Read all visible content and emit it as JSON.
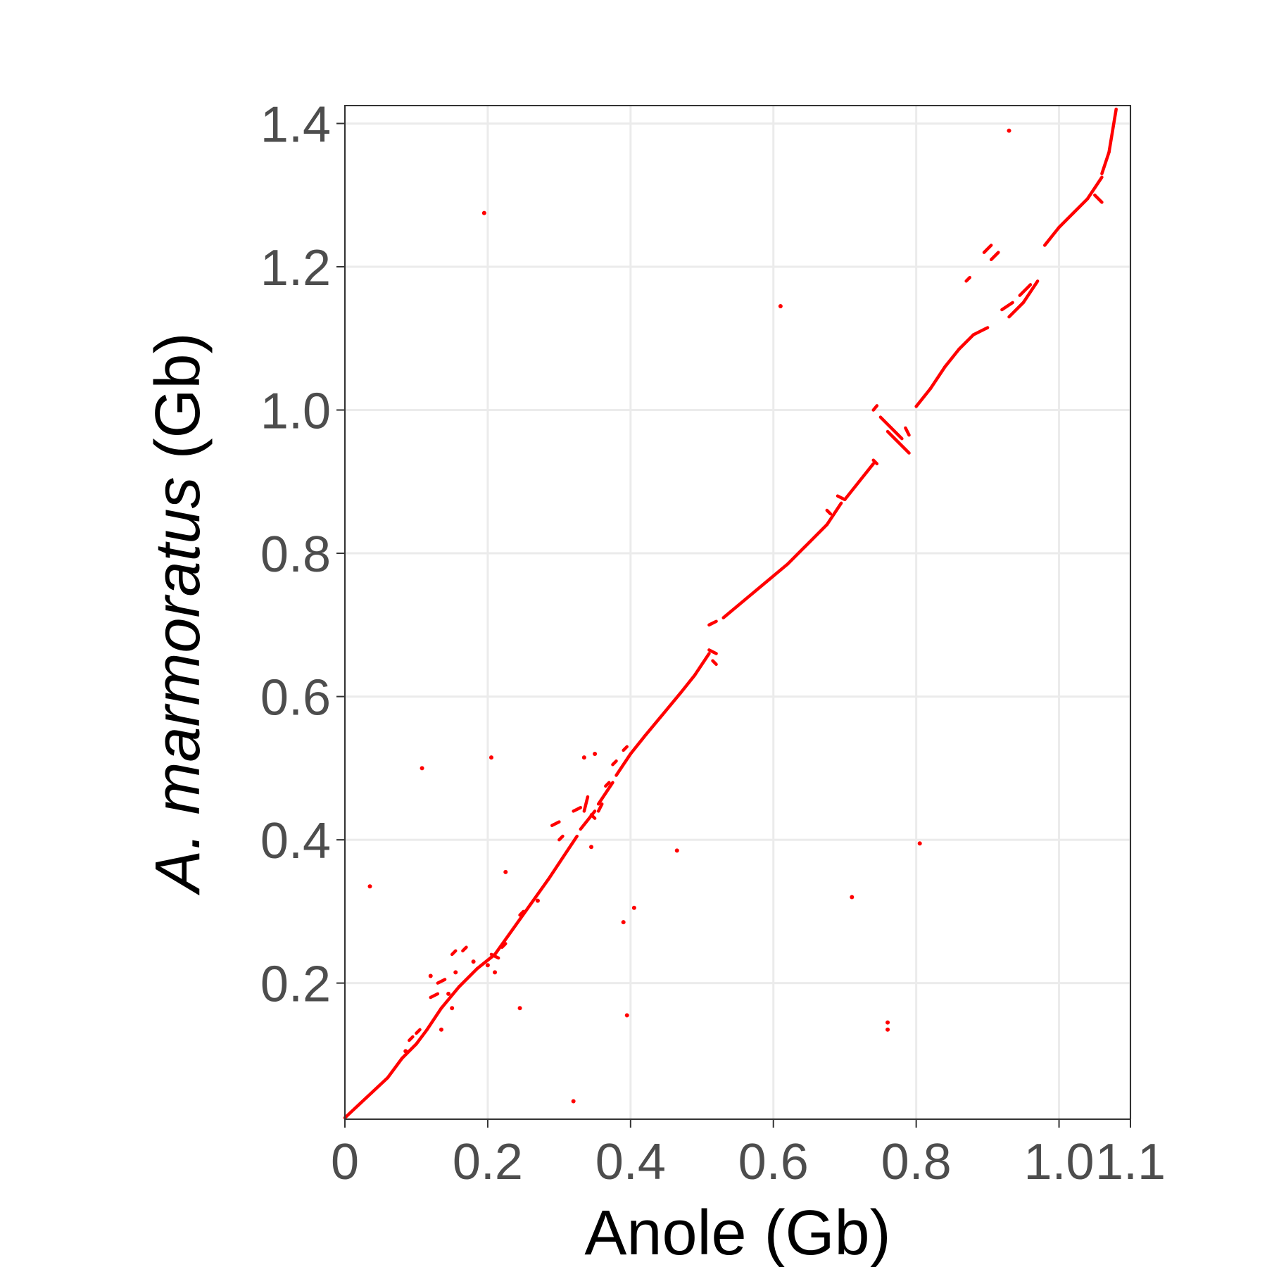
{
  "chart_data": {
    "type": "scatter",
    "title": "",
    "xlabel": "Anole (Gb)",
    "ylabel_italic": "A. marmoratus",
    "ylabel_rest": " (Gb)",
    "xlim": [
      0,
      1.1
    ],
    "ylim": [
      0.01,
      1.425
    ],
    "x_ticks": [
      0,
      0.2,
      0.4,
      0.6,
      0.8,
      1.0,
      1.1
    ],
    "x_tick_labels": [
      "0",
      "0.2",
      "0.4",
      "0.6",
      "0.8",
      "1.0",
      "1.1"
    ],
    "y_ticks": [
      0.2,
      0.4,
      0.6,
      0.8,
      1.0,
      1.2,
      1.4
    ],
    "y_tick_labels": [
      "0.2",
      "0.4",
      "0.6",
      "0.8",
      "1.0",
      "1.2",
      "1.4"
    ],
    "grid": true,
    "color": "#ff0000",
    "segments": [
      [
        0.0,
        0.012,
        0.03,
        0.04
      ],
      [
        0.03,
        0.04,
        0.06,
        0.068
      ],
      [
        0.06,
        0.068,
        0.08,
        0.095
      ],
      [
        0.08,
        0.095,
        0.1,
        0.115
      ],
      [
        0.1,
        0.115,
        0.115,
        0.135
      ],
      [
        0.115,
        0.135,
        0.135,
        0.165
      ],
      [
        0.135,
        0.165,
        0.16,
        0.195
      ],
      [
        0.16,
        0.195,
        0.185,
        0.22
      ],
      [
        0.185,
        0.22,
        0.21,
        0.24
      ],
      [
        0.21,
        0.24,
        0.235,
        0.275
      ],
      [
        0.235,
        0.275,
        0.26,
        0.31
      ],
      [
        0.26,
        0.31,
        0.285,
        0.345
      ],
      [
        0.285,
        0.345,
        0.305,
        0.375
      ],
      [
        0.305,
        0.375,
        0.325,
        0.405
      ],
      [
        0.33,
        0.415,
        0.35,
        0.44
      ],
      [
        0.355,
        0.45,
        0.375,
        0.48
      ],
      [
        0.38,
        0.49,
        0.4,
        0.52
      ],
      [
        0.4,
        0.52,
        0.42,
        0.545
      ],
      [
        0.42,
        0.545,
        0.445,
        0.575
      ],
      [
        0.445,
        0.575,
        0.47,
        0.605
      ],
      [
        0.47,
        0.605,
        0.49,
        0.63
      ],
      [
        0.49,
        0.63,
        0.51,
        0.66
      ],
      [
        0.51,
        0.7,
        0.52,
        0.705
      ],
      [
        0.53,
        0.71,
        0.56,
        0.735
      ],
      [
        0.56,
        0.735,
        0.59,
        0.76
      ],
      [
        0.59,
        0.76,
        0.62,
        0.785
      ],
      [
        0.62,
        0.785,
        0.65,
        0.815
      ],
      [
        0.65,
        0.815,
        0.675,
        0.84
      ],
      [
        0.675,
        0.84,
        0.695,
        0.87
      ],
      [
        0.7,
        0.875,
        0.72,
        0.9
      ],
      [
        0.72,
        0.9,
        0.74,
        0.925
      ],
      [
        0.8,
        1.005,
        0.82,
        1.03
      ],
      [
        0.82,
        1.03,
        0.84,
        1.06
      ],
      [
        0.84,
        1.06,
        0.86,
        1.085
      ],
      [
        0.86,
        1.085,
        0.88,
        1.105
      ],
      [
        0.88,
        1.105,
        0.9,
        1.115
      ],
      [
        0.93,
        1.13,
        0.95,
        1.15
      ],
      [
        0.95,
        1.15,
        0.97,
        1.18
      ],
      [
        0.98,
        1.23,
        1.0,
        1.255
      ],
      [
        1.0,
        1.255,
        1.02,
        1.275
      ],
      [
        1.02,
        1.275,
        1.04,
        1.295
      ],
      [
        1.04,
        1.295,
        1.06,
        1.325
      ],
      [
        1.06,
        1.33,
        1.07,
        1.36
      ],
      [
        1.07,
        1.36,
        1.08,
        1.42
      ],
      [
        0.74,
        1.0,
        0.745,
        1.006
      ],
      [
        0.75,
        0.99,
        0.765,
        0.975
      ],
      [
        0.765,
        0.975,
        0.78,
        0.96
      ],
      [
        0.76,
        0.97,
        0.775,
        0.955
      ],
      [
        0.775,
        0.955,
        0.79,
        0.94
      ],
      [
        0.785,
        0.975,
        0.79,
        0.965
      ],
      [
        0.87,
        1.18,
        0.875,
        1.185
      ],
      [
        0.895,
        1.22,
        0.905,
        1.23
      ],
      [
        0.905,
        1.21,
        0.915,
        1.22
      ],
      [
        0.92,
        1.14,
        0.935,
        1.15
      ],
      [
        0.945,
        1.16,
        0.96,
        1.175
      ],
      [
        1.05,
        1.3,
        1.06,
        1.29
      ],
      [
        0.51,
        0.665,
        0.52,
        0.66
      ],
      [
        0.515,
        0.65,
        0.52,
        0.645
      ],
      [
        0.74,
        0.93,
        0.745,
        0.925
      ],
      [
        0.69,
        0.88,
        0.7,
        0.875
      ],
      [
        0.675,
        0.86,
        0.68,
        0.855
      ],
      [
        0.365,
        0.475,
        0.37,
        0.48
      ],
      [
        0.355,
        0.44,
        0.36,
        0.45
      ],
      [
        0.345,
        0.435,
        0.35,
        0.43
      ],
      [
        0.375,
        0.505,
        0.38,
        0.51
      ],
      [
        0.39,
        0.525,
        0.395,
        0.53
      ],
      [
        0.29,
        0.42,
        0.3,
        0.425
      ],
      [
        0.3,
        0.4,
        0.305,
        0.405
      ],
      [
        0.32,
        0.44,
        0.33,
        0.445
      ],
      [
        0.335,
        0.44,
        0.34,
        0.46
      ],
      [
        0.22,
        0.25,
        0.225,
        0.255
      ],
      [
        0.245,
        0.295,
        0.25,
        0.3
      ],
      [
        0.205,
        0.24,
        0.215,
        0.235
      ],
      [
        0.15,
        0.24,
        0.155,
        0.245
      ],
      [
        0.17,
        0.25,
        0.165,
        0.245
      ],
      [
        0.1,
        0.13,
        0.105,
        0.135
      ],
      [
        0.09,
        0.12,
        0.095,
        0.125
      ],
      [
        0.12,
        0.18,
        0.13,
        0.185
      ],
      [
        0.13,
        0.2,
        0.14,
        0.205
      ]
    ],
    "points": [
      [
        0.195,
        1.275
      ],
      [
        0.035,
        0.335
      ],
      [
        0.108,
        0.5
      ],
      [
        0.205,
        0.515
      ],
      [
        0.225,
        0.355
      ],
      [
        0.245,
        0.165
      ],
      [
        0.32,
        0.035
      ],
      [
        0.335,
        0.515
      ],
      [
        0.345,
        0.39
      ],
      [
        0.39,
        0.285
      ],
      [
        0.395,
        0.155
      ],
      [
        0.405,
        0.305
      ],
      [
        0.465,
        0.385
      ],
      [
        0.61,
        1.145
      ],
      [
        0.71,
        0.32
      ],
      [
        0.76,
        0.145
      ],
      [
        0.76,
        0.135
      ],
      [
        0.805,
        0.395
      ],
      [
        0.93,
        1.39
      ],
      [
        0.135,
        0.135
      ],
      [
        0.15,
        0.165
      ],
      [
        0.12,
        0.21
      ],
      [
        0.085,
        0.105
      ],
      [
        0.27,
        0.315
      ],
      [
        0.35,
        0.52
      ],
      [
        0.21,
        0.215
      ],
      [
        0.2,
        0.225
      ],
      [
        0.145,
        0.185
      ],
      [
        0.155,
        0.215
      ],
      [
        0.18,
        0.23
      ]
    ]
  }
}
